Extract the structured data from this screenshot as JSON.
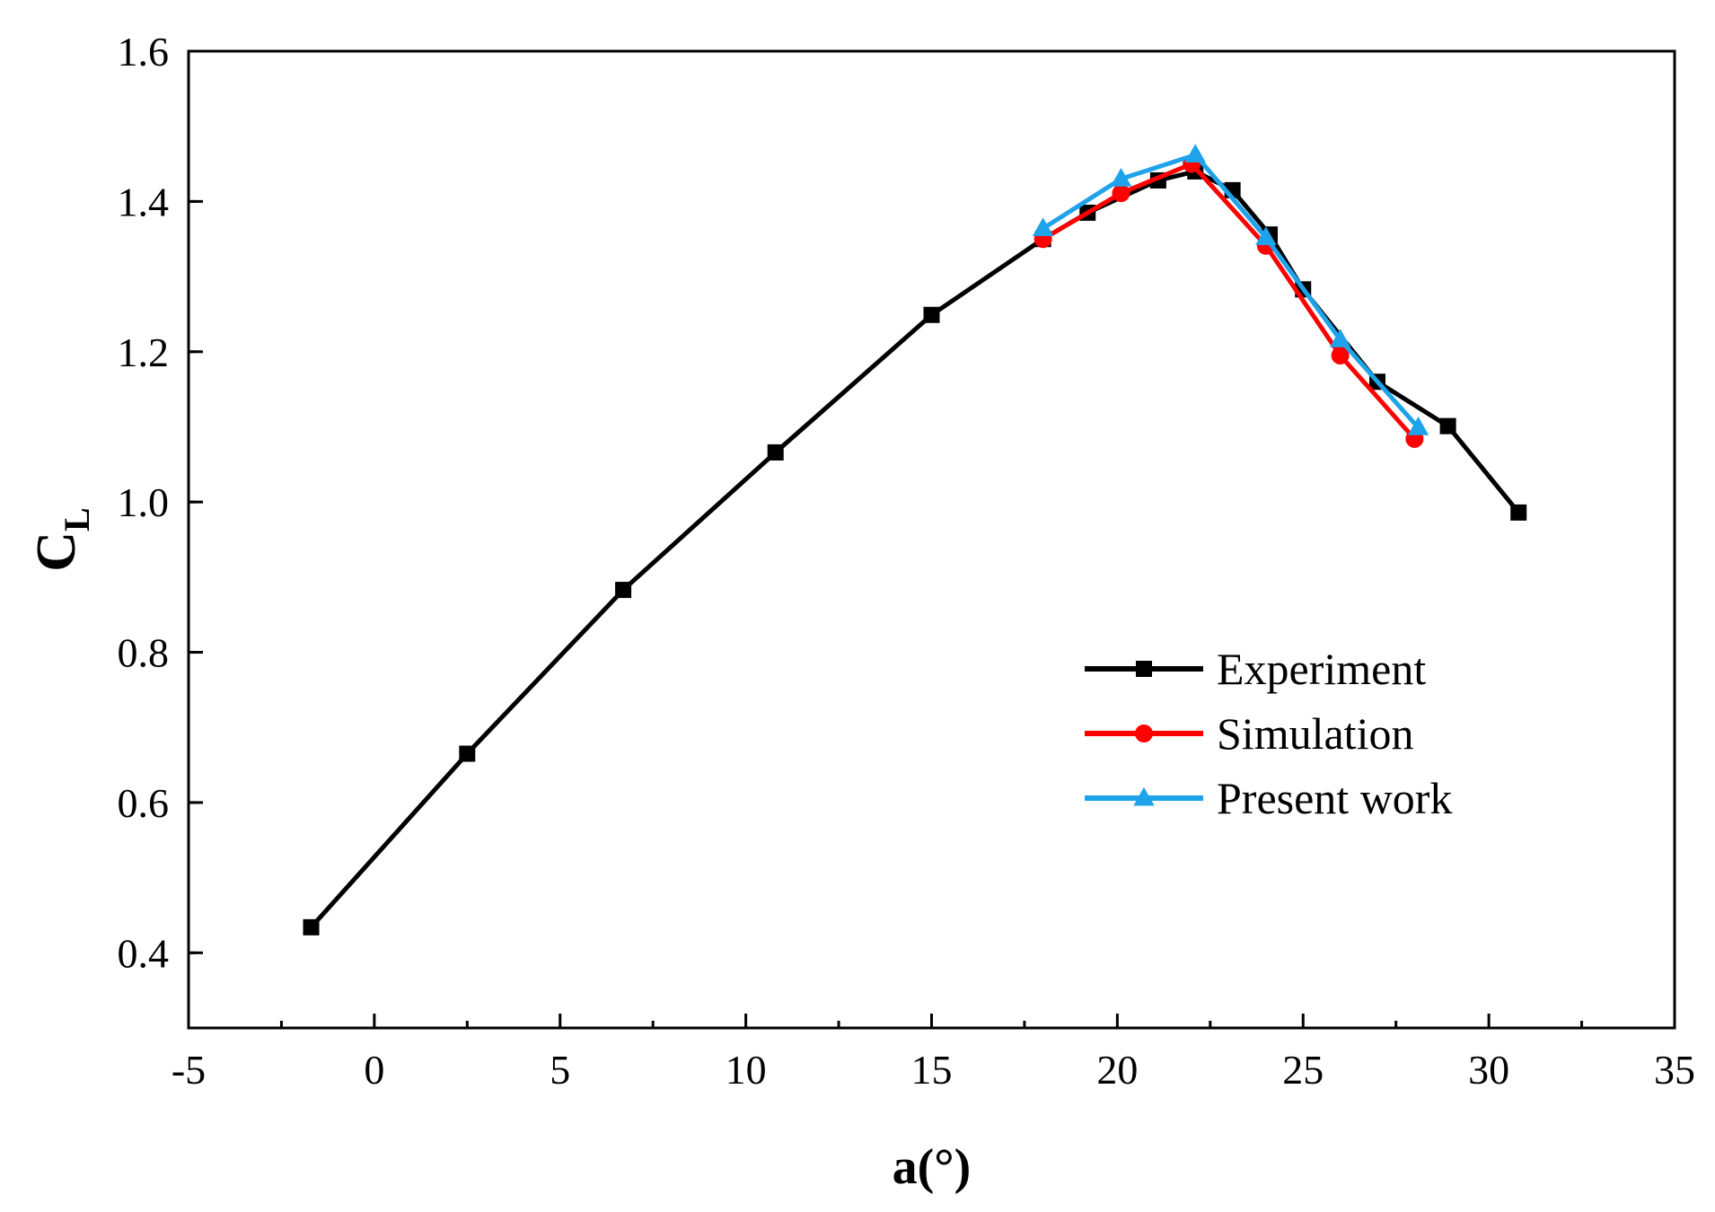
{
  "chart_data": {
    "type": "line",
    "title": "",
    "xlabel": "a(°)",
    "ylabel_main": "C",
    "ylabel_sub": "L",
    "xlim": [
      -5,
      35
    ],
    "ylim": [
      0.3,
      1.6
    ],
    "x_ticks": [
      -5,
      0,
      5,
      10,
      15,
      20,
      25,
      30,
      35
    ],
    "x_tick_labels": [
      "-5",
      "0",
      "5",
      "10",
      "15",
      "20",
      "25",
      "30",
      "35"
    ],
    "y_ticks": [
      0.4,
      0.6,
      0.8,
      1.0,
      1.2,
      1.4,
      1.6
    ],
    "y_tick_labels": [
      "0.4",
      "0.6",
      "0.8",
      "1.0",
      "1.2",
      "1.4",
      "1.6"
    ],
    "grid": false,
    "legend_position": "bottom-right",
    "series": [
      {
        "name": "Experiment",
        "color": "#000000",
        "marker": "square",
        "x": [
          -1.7,
          2.5,
          6.7,
          10.8,
          15.0,
          18.0,
          19.2,
          21.1,
          22.1,
          23.1,
          24.1,
          25.0,
          27.0,
          28.9,
          30.8
        ],
        "y": [
          0.434,
          0.665,
          0.883,
          1.066,
          1.249,
          1.35,
          1.385,
          1.428,
          1.44,
          1.415,
          1.356,
          1.283,
          1.16,
          1.101,
          0.986
        ]
      },
      {
        "name": "Simulation",
        "color": "#ff0000",
        "marker": "circle",
        "x": [
          18.0,
          20.1,
          22.0,
          24.0,
          26.0,
          28.0
        ],
        "y": [
          1.35,
          1.411,
          1.45,
          1.341,
          1.195,
          1.084
        ]
      },
      {
        "name": "Present work",
        "color": "#1ea3ea",
        "marker": "triangle",
        "x": [
          18.0,
          20.1,
          22.1,
          24.0,
          26.0,
          28.1
        ],
        "y": [
          1.364,
          1.43,
          1.462,
          1.352,
          1.216,
          1.099
        ]
      }
    ]
  }
}
